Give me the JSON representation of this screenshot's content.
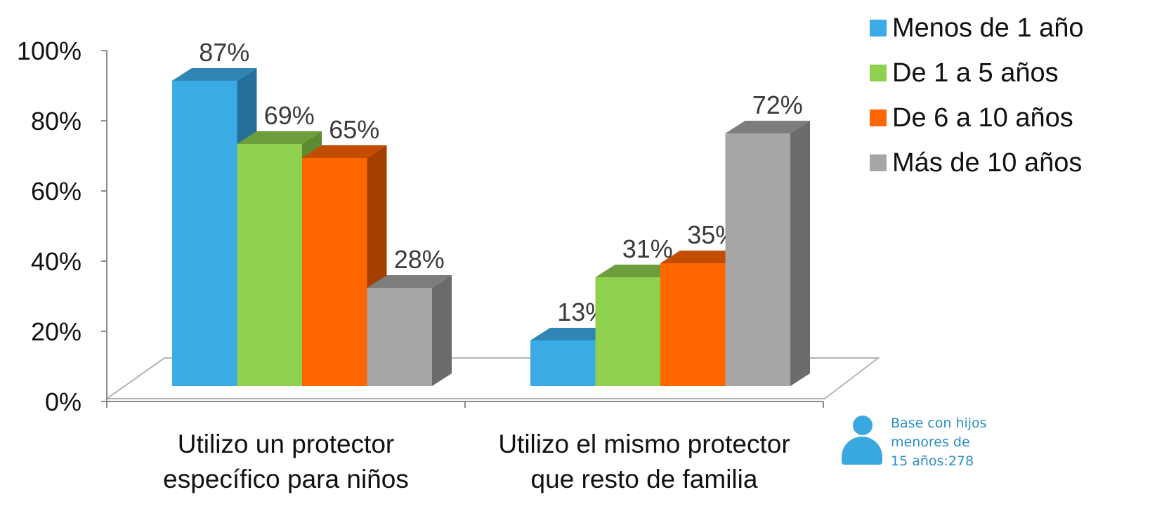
{
  "chart_data": {
    "type": "bar",
    "categories": [
      "Utilizo un protector específico para niños",
      "Utilizo el mismo protector que resto de familia"
    ],
    "category_lines": [
      [
        "Utilizo un protector",
        "específico para niños"
      ],
      [
        "Utilizo el mismo protector",
        "que resto de familia"
      ]
    ],
    "series": [
      {
        "name": "Menos de 1 año",
        "values": [
          87,
          13
        ],
        "labels": [
          "87%",
          "13%"
        ],
        "color": "#3aabe5",
        "top_color": "#2f86b5",
        "side_color": "#25709b"
      },
      {
        "name": "De 1 a 5 años",
        "values": [
          69,
          31
        ],
        "labels": [
          "69%",
          "31%"
        ],
        "color": "#8fd14f",
        "top_color": "#6e9e3c",
        "side_color": "#5d8a33"
      },
      {
        "name": "De 6 a 10 años",
        "values": [
          65,
          35
        ],
        "labels": [
          "65%",
          "35%"
        ],
        "color": "#ff6600",
        "top_color": "#c24d00",
        "side_color": "#a53f00"
      },
      {
        "name": "Más de 10 años",
        "values": [
          28,
          72
        ],
        "labels": [
          "28%",
          "72%"
        ],
        "color": "#a6a6a6",
        "top_color": "#7d7d7d",
        "side_color": "#6b6b6b"
      }
    ],
    "y_ticks": [
      "0%",
      "20%",
      "40%",
      "60%",
      "80%",
      "100%"
    ],
    "ylim": [
      0,
      100
    ],
    "legend_position": "top-right",
    "grid": false,
    "three_d": true
  },
  "base_note": [
    "Base con hijos",
    "menores de",
    "15 años:278"
  ],
  "colors": {
    "axis": "#8c8c8c",
    "icon": "#3aa8e0",
    "note_text": "#2a8fc7"
  }
}
